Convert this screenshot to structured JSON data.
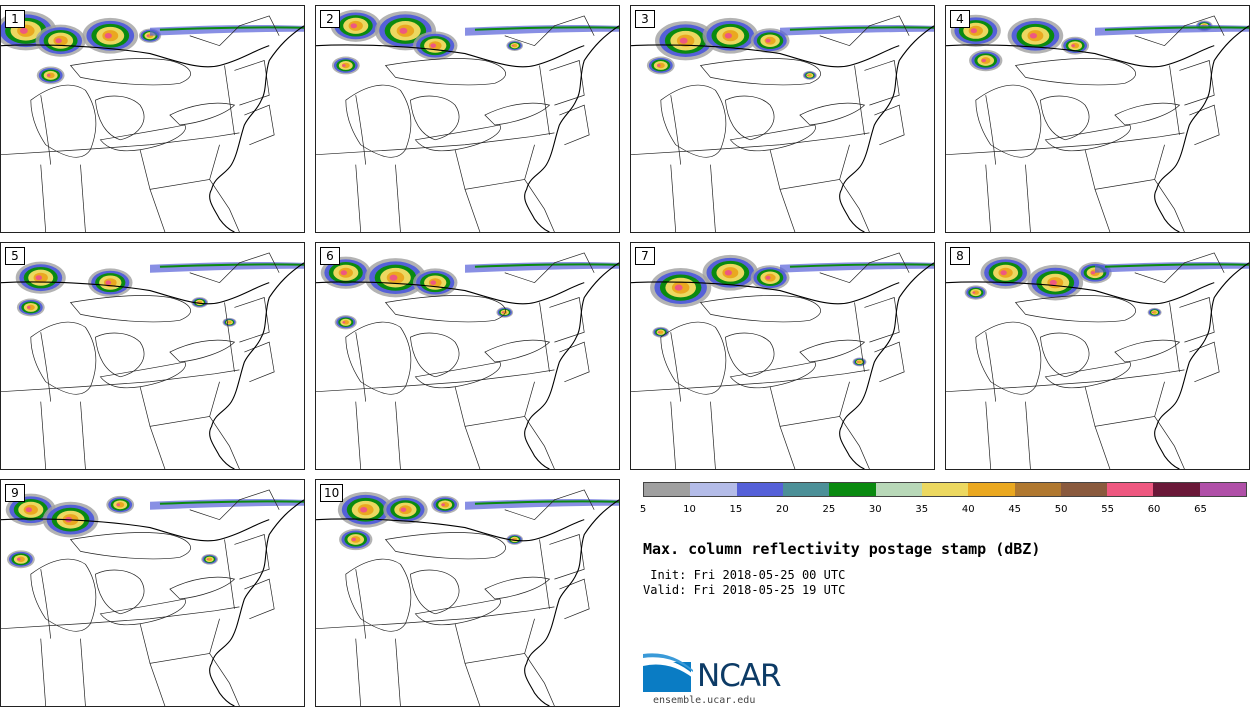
{
  "panels": [
    {
      "label": "1"
    },
    {
      "label": "2"
    },
    {
      "label": "3"
    },
    {
      "label": "4"
    },
    {
      "label": "5"
    },
    {
      "label": "6"
    },
    {
      "label": "7"
    },
    {
      "label": "8"
    },
    {
      "label": "9"
    },
    {
      "label": "10"
    }
  ],
  "colorbar": {
    "colors": [
      "#a0a0a0",
      "#b4bce8",
      "#5560d8",
      "#4c9098",
      "#0a8a10",
      "#b8d8b8",
      "#ecd860",
      "#eaa820",
      "#b07830",
      "#8a5a3e",
      "#ee5880",
      "#6a1838",
      "#b050a8"
    ],
    "ticks": [
      "5",
      "10",
      "15",
      "20",
      "25",
      "30",
      "35",
      "40",
      "45",
      "50",
      "55",
      "60",
      "65"
    ]
  },
  "title": "Max. column reflectivity postage stamp (dBZ)",
  "init_line": " Init: Fri 2018-05-25 00 UTC",
  "valid_line": "Valid: Fri 2018-05-25 19 UTC",
  "logo": {
    "text": "NCAR"
  },
  "url": "ensemble.ucar.edu"
}
